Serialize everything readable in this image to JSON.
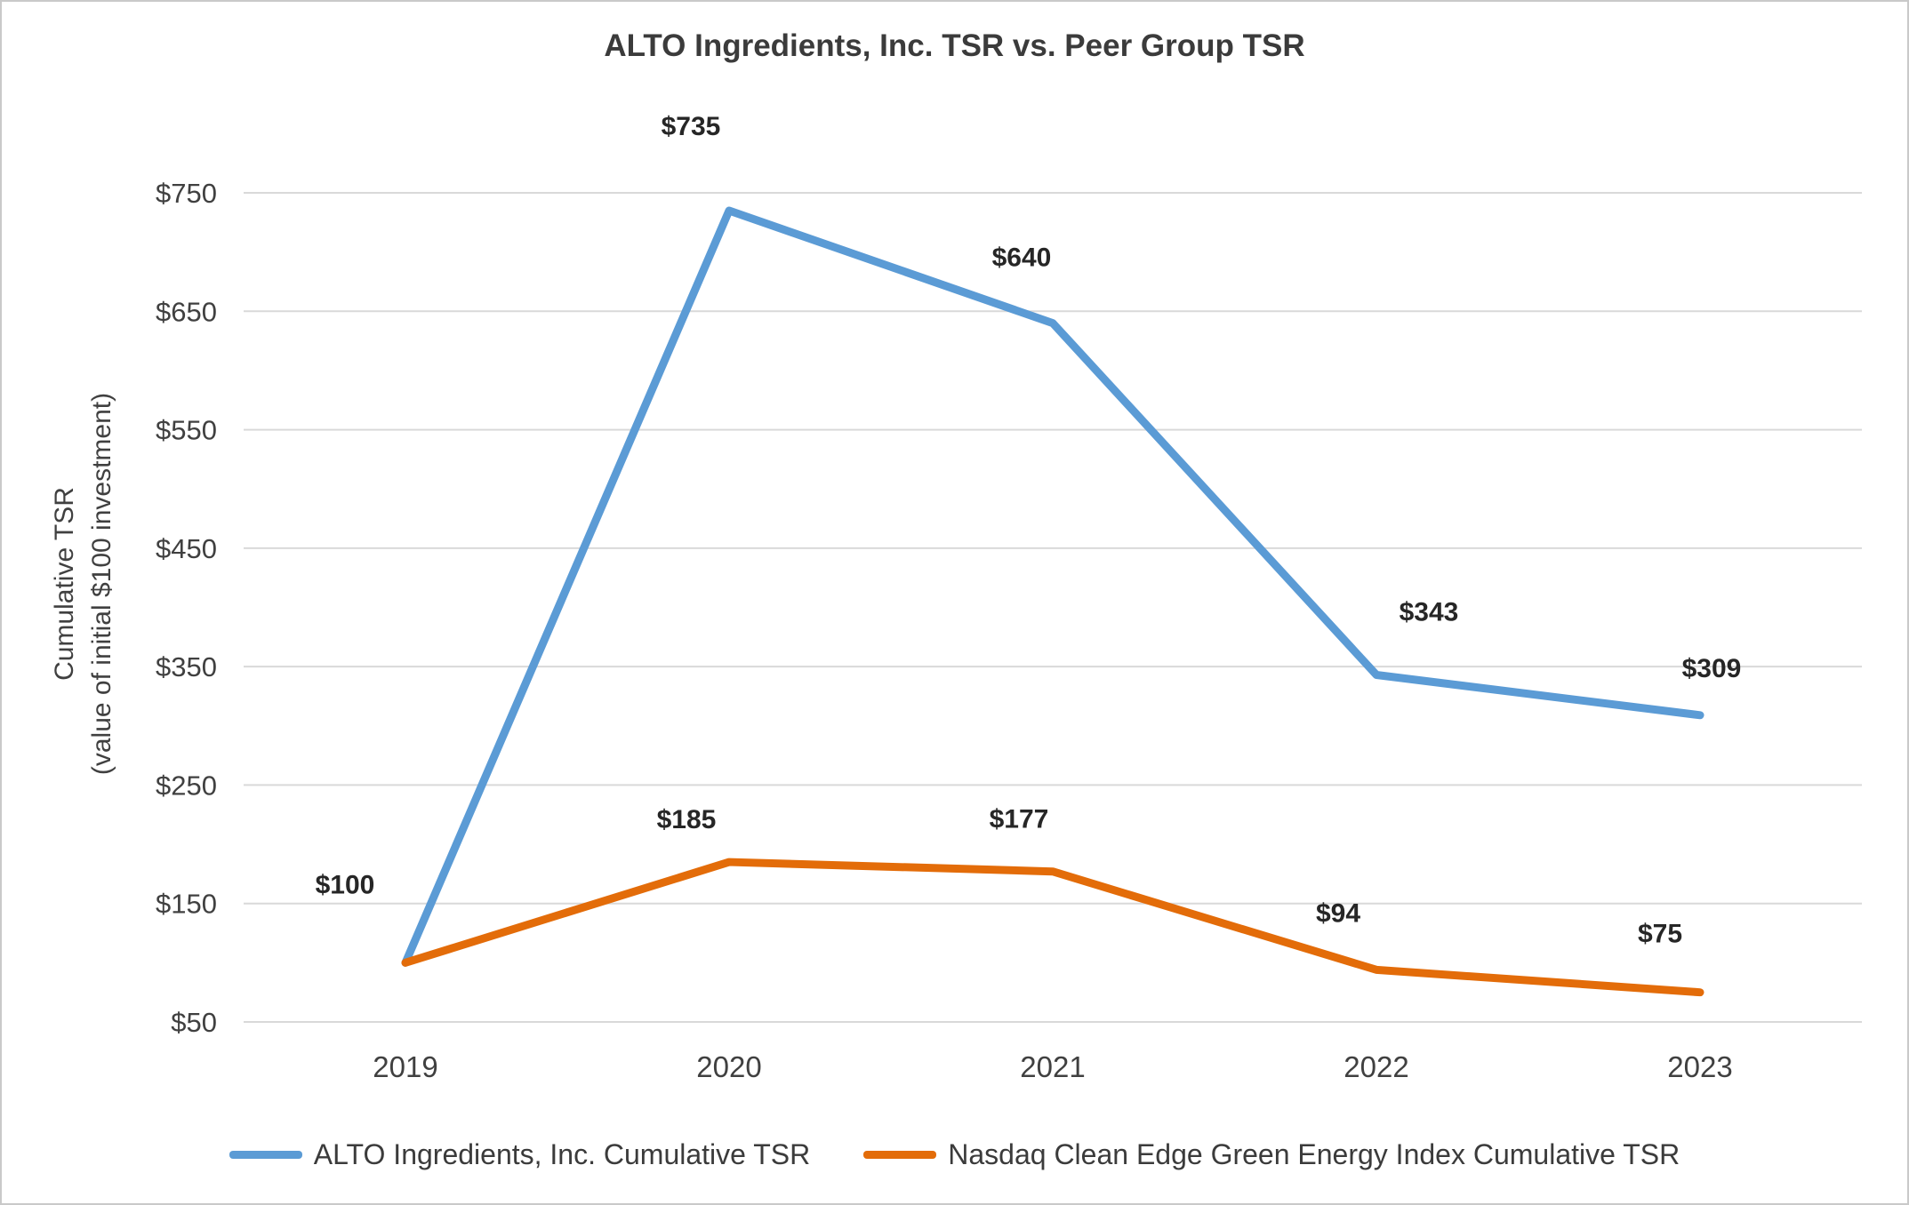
{
  "figure": {
    "title": "ALTO Ingredients, Inc. TSR vs. Peer Group TSR"
  },
  "y_axis": {
    "label_line1": "Cumulative TSR",
    "label_line2": "(value of initial $100 investment)"
  },
  "chart_data": {
    "type": "line",
    "title": "ALTO Ingredients, Inc. TSR vs. Peer Group TSR",
    "categories": [
      "2019",
      "2020",
      "2021",
      "2022",
      "2023"
    ],
    "series": [
      {
        "name": "ALTO Ingredients, Inc. Cumulative TSR",
        "color": "#5B9BD5",
        "values": [
          100,
          735,
          640,
          343,
          309
        ],
        "labels": [
          "$100",
          "$735",
          "$640",
          "$343",
          "$309"
        ]
      },
      {
        "name": "Nasdaq Clean Edge Green Energy Index Cumulative TSR",
        "color": "#E36C09",
        "values": [
          100,
          185,
          177,
          94,
          75
        ],
        "labels": [
          "",
          "$185",
          "$177",
          "$94",
          "$75"
        ]
      }
    ],
    "xlabel": "",
    "ylabel": "Cumulative TSR (value of initial $100 investment)",
    "ylim": [
      50,
      750
    ],
    "yticks": [
      50,
      150,
      250,
      350,
      450,
      550,
      650,
      750
    ],
    "ytick_labels": [
      "$50",
      "$150",
      "$250",
      "$350",
      "$450",
      "$550",
      "$650",
      "$750"
    ],
    "grid": true,
    "grid_color": "#D9D9D9",
    "legend_position": "bottom",
    "label_color": "#262626",
    "tick_color": "#404040"
  }
}
